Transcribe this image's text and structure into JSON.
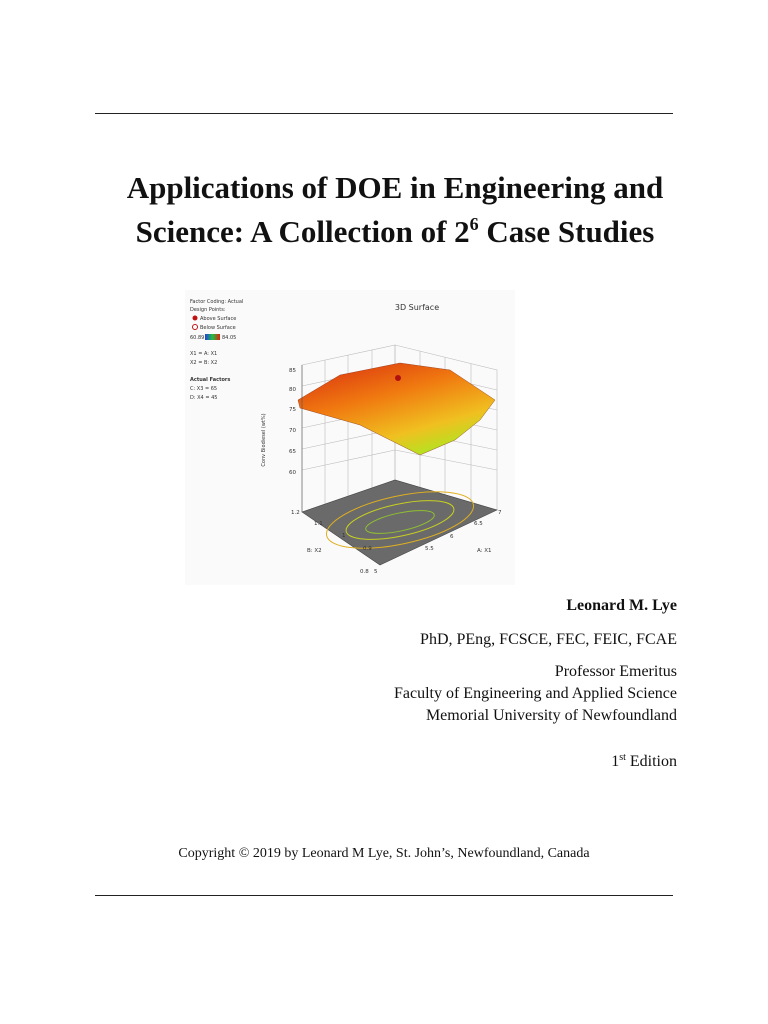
{
  "title": {
    "line1": "Applications of DOE in Engineering and",
    "line2_start": "Science: A Collection of 2",
    "line2_superscript": "6",
    "line2_end": "Case Studies"
  },
  "figure": {
    "title": "3D Surface",
    "legend": {
      "factor_coding": "Factor Coding: Actual",
      "design_points": "Design Points:",
      "above": "Above Surface",
      "below": "Below Surface",
      "range_min": "60.89",
      "range_max": "84.05",
      "x1": "X1 = A: X1",
      "x2": "X2 = B: X2",
      "actual_factors": "Actual Factors",
      "c": "C: X3 = 65",
      "d": "D: X4 = 45"
    },
    "z_axis": {
      "label": "Conv Biodiesel (wt%)",
      "ticks": [
        "85",
        "80",
        "75",
        "70",
        "65",
        "60"
      ]
    },
    "b_axis": {
      "label": "B: X2",
      "ticks": [
        "1.2",
        "1.1",
        "1",
        "0.9",
        "0.8"
      ]
    },
    "a_axis": {
      "label": "A: X1",
      "ticks": [
        "5",
        "5.5",
        "6",
        "6.5",
        "7"
      ]
    }
  },
  "author": {
    "name": "Leonard M. Lye",
    "credentials": "PhD, PEng, FCSCE, FEC, FEIC, FCAE",
    "position": "Professor Emeritus",
    "faculty": "Faculty of Engineering and Applied Science",
    "university": "Memorial University of Newfoundland",
    "edition_number": "1",
    "edition_suffix": "st",
    "edition_word": "Edition"
  },
  "copyright": "Copyright © 2019 by Leonard M Lye, St. John’s, Newfoundland, Canada"
}
